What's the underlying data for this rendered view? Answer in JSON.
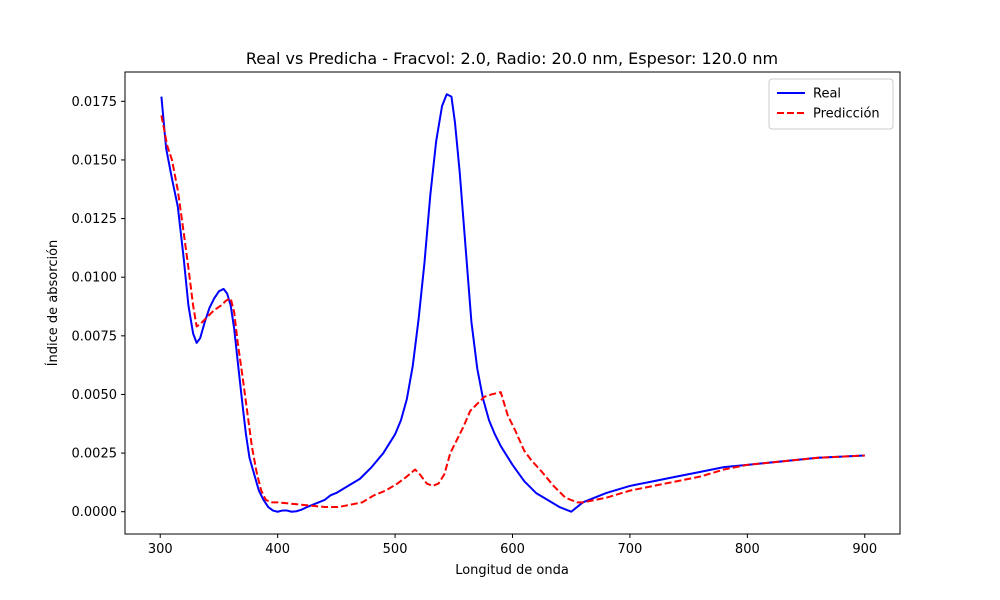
{
  "chart_data": {
    "type": "line",
    "title": "Real vs Predicha - Fracvol: 2.0, Radio: 20.0 nm, Espesor: 120.0 nm",
    "xlabel": "Longitud de onda",
    "ylabel": "Índice de absorción",
    "xlim": [
      270,
      930
    ],
    "ylim": [
      -0.00095,
      0.01875
    ],
    "x_ticks": [
      300,
      400,
      500,
      600,
      700,
      800,
      900
    ],
    "x_tick_labels": [
      "300",
      "400",
      "500",
      "600",
      "700",
      "800",
      "900"
    ],
    "y_ticks": [
      0.0,
      0.0025,
      0.005,
      0.0075,
      0.01,
      0.0125,
      0.015,
      0.0175
    ],
    "y_tick_labels": [
      "0.0000",
      "0.0025",
      "0.0050",
      "0.0075",
      "0.0100",
      "0.0125",
      "0.0150",
      "0.0175"
    ],
    "grid": false,
    "legend_position": "top-right",
    "series": [
      {
        "name": "Real",
        "color": "#0000ff",
        "style": "solid",
        "x": [
          301,
          305,
          310,
          315,
          320,
          324,
          328,
          331,
          334,
          338,
          342,
          346,
          350,
          354,
          357,
          360,
          363,
          366,
          370,
          373,
          376,
          380,
          384,
          388,
          392,
          396,
          400,
          404,
          408,
          412,
          416,
          420,
          425,
          430,
          435,
          440,
          445,
          450,
          460,
          470,
          480,
          490,
          500,
          505,
          510,
          515,
          520,
          525,
          530,
          535,
          540,
          544,
          548,
          551,
          555,
          560,
          565,
          570,
          575,
          580,
          585,
          590,
          600,
          610,
          620,
          630,
          640,
          650,
          660,
          680,
          700,
          720,
          740,
          760,
          780,
          800,
          820,
          840,
          860,
          880,
          900
        ],
        "y": [
          0.0177,
          0.0155,
          0.0142,
          0.013,
          0.0108,
          0.0088,
          0.0076,
          0.0072,
          0.0074,
          0.0081,
          0.0087,
          0.0091,
          0.0094,
          0.0095,
          0.0093,
          0.0088,
          0.0078,
          0.0064,
          0.0046,
          0.0033,
          0.0023,
          0.0016,
          0.0009,
          0.0005,
          0.0002,
          5e-05,
          0.0,
          5e-05,
          5e-05,
          0.0,
          2e-05,
          8e-05,
          0.0002,
          0.0003,
          0.0004,
          0.0005,
          0.0007,
          0.0008,
          0.0011,
          0.0014,
          0.0019,
          0.0025,
          0.0033,
          0.0039,
          0.0048,
          0.0062,
          0.0082,
          0.0106,
          0.0135,
          0.0158,
          0.0173,
          0.0178,
          0.0177,
          0.0166,
          0.0145,
          0.0113,
          0.0081,
          0.0061,
          0.0048,
          0.0039,
          0.0033,
          0.0028,
          0.002,
          0.0013,
          0.0008,
          0.0005,
          0.0002,
          0.0,
          0.0004,
          0.0008,
          0.0011,
          0.0013,
          0.0015,
          0.0017,
          0.0019,
          0.002,
          0.0021,
          0.0022,
          0.0023,
          0.00235,
          0.0024
        ]
      },
      {
        "name": "Predicción",
        "color": "#ff0000",
        "style": "dashed",
        "x": [
          301,
          306,
          310,
          315,
          320,
          324,
          328,
          331,
          334,
          340,
          346,
          352,
          356,
          360,
          363,
          366,
          370,
          374,
          378,
          382,
          386,
          390,
          395,
          400,
          410,
          420,
          430,
          440,
          452,
          462,
          472,
          482,
          492,
          502,
          510,
          517,
          521,
          527,
          532,
          537,
          542,
          547,
          552,
          558,
          564,
          570,
          576,
          582,
          590,
          596,
          602,
          610,
          616,
          625,
          635,
          645,
          655,
          660,
          680,
          700,
          720,
          740,
          760,
          780,
          800,
          820,
          840,
          860,
          880,
          900
        ],
        "y": [
          0.0169,
          0.0156,
          0.015,
          0.0137,
          0.0119,
          0.0104,
          0.0088,
          0.0079,
          0.008,
          0.0083,
          0.0086,
          0.0088,
          0.009,
          0.0091,
          0.0085,
          0.0072,
          0.0058,
          0.0043,
          0.0028,
          0.0017,
          0.0009,
          0.0005,
          0.0004,
          0.0004,
          0.00035,
          0.0003,
          0.00025,
          0.0002,
          0.0002,
          0.0003,
          0.0004,
          0.0007,
          0.0009,
          0.0012,
          0.0015,
          0.0018,
          0.0016,
          0.0012,
          0.0011,
          0.0012,
          0.0016,
          0.0025,
          0.003,
          0.0036,
          0.0043,
          0.0046,
          0.0049,
          0.005,
          0.0051,
          0.0041,
          0.0035,
          0.0026,
          0.0022,
          0.0017,
          0.0011,
          0.0006,
          0.0004,
          0.0004,
          0.0006,
          0.0009,
          0.0011,
          0.0013,
          0.0015,
          0.0018,
          0.002,
          0.0021,
          0.0022,
          0.0023,
          0.00235,
          0.0024
        ]
      }
    ]
  }
}
